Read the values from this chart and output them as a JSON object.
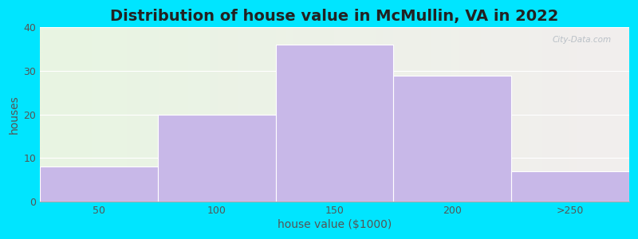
{
  "title": "Distribution of house value in McMullin, VA in 2022",
  "xlabel": "house value ($1000)",
  "ylabel": "houses",
  "categories": [
    "50",
    "100",
    "150",
    "200",
    ">250"
  ],
  "values": [
    8,
    20,
    36,
    29,
    7
  ],
  "bar_color": "#c8b8e8",
  "bar_edgecolor": "#ffffff",
  "ylim": [
    0,
    40
  ],
  "yticks": [
    0,
    10,
    20,
    30,
    40
  ],
  "background_outer": "#00e5ff",
  "background_inner_left": "#e8f5e2",
  "background_inner_right": "#f2eeee",
  "title_fontsize": 14,
  "axis_fontsize": 10,
  "tick_fontsize": 9,
  "bar_width": 1.0
}
